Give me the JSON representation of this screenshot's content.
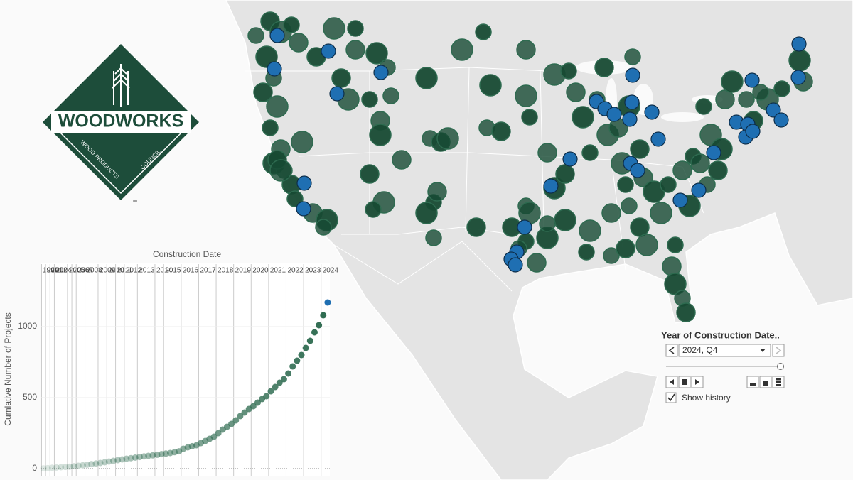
{
  "logo": {
    "name": "WOODWORKS",
    "tagline_1": "WOOD PRODUCTS",
    "tagline_2": "COUNCIL",
    "mark": "™"
  },
  "filter": {
    "title": "Year of Construction Date..",
    "selected": "2024, Q4",
    "show_history": "Show history"
  },
  "chart_data": {
    "type": "scatter",
    "title": "Construction Date",
    "y_label": "Cumlative Number of Projects",
    "categories": [
      "1999",
      "2001",
      "2002",
      "2004",
      null,
      null,
      "2005",
      "2006",
      "2007",
      null,
      "2008",
      null,
      null,
      "2009",
      null,
      "2010",
      null,
      "2011",
      null,
      "2012",
      null,
      null,
      "2013",
      null,
      null,
      null,
      "2014",
      null,
      "2015",
      null,
      null,
      null,
      "2016",
      null,
      null,
      null,
      "2017",
      null,
      null,
      null,
      "2018",
      null,
      null,
      null,
      "2019",
      null,
      null,
      null,
      "2020",
      null,
      null,
      null,
      "2021",
      null,
      null,
      null,
      "2022",
      null,
      null,
      null,
      "2023",
      null,
      null,
      null,
      "2024",
      null
    ],
    "values": [
      2,
      4,
      6,
      8,
      10,
      12,
      14,
      17,
      20,
      24,
      28,
      32,
      36,
      40,
      45,
      50,
      55,
      60,
      65,
      70,
      74,
      78,
      82,
      86,
      90,
      94,
      98,
      102,
      106,
      110,
      116,
      122,
      140,
      150,
      158,
      165,
      180,
      195,
      210,
      225,
      250,
      275,
      295,
      315,
      340,
      370,
      395,
      420,
      440,
      465,
      490,
      510,
      545,
      575,
      605,
      630,
      670,
      720,
      760,
      800,
      850,
      900,
      960,
      1010,
      1080,
      1170
    ],
    "color": "#2e6b50",
    "highlight_color": "#1f6fb2",
    "ylim": [
      0,
      1440
    ],
    "yticks": [
      0,
      500,
      1000
    ],
    "grid": true
  }
}
